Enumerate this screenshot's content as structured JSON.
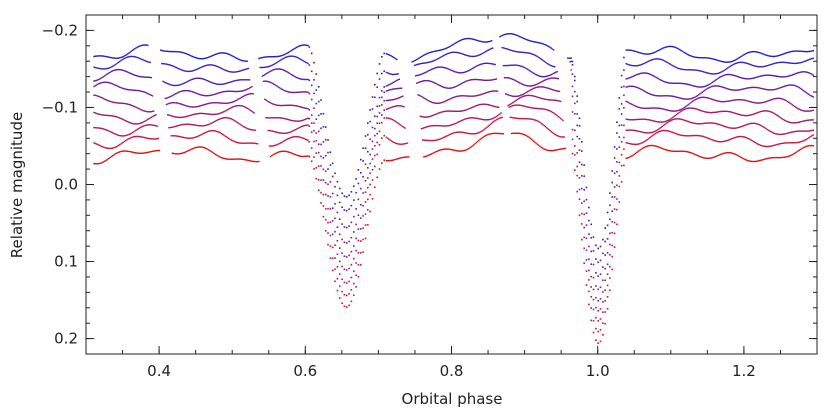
{
  "chart_data": {
    "type": "scatter",
    "title": "",
    "xlabel": "Orbital phase",
    "ylabel": "Relative magnitude",
    "xlim": [
      0.3,
      1.3
    ],
    "ylim": [
      0.22,
      -0.22
    ],
    "y_axis_inverted": true,
    "x_ticks": [
      0.4,
      0.6,
      0.8,
      1.0,
      1.2
    ],
    "x_tick_labels": [
      "0.4",
      "0.6",
      "0.8",
      "1.0",
      "1.2"
    ],
    "y_ticks": [
      -0.2,
      -0.1,
      0.0,
      0.1,
      0.2
    ],
    "y_tick_labels": [
      "−0.2",
      "−0.1",
      "0.0",
      "0.1",
      "0.2"
    ],
    "grid": false,
    "legend": "none",
    "color_gradient": {
      "top": "#1a1ad8",
      "bottom": "#e01010"
    },
    "eclipses": [
      {
        "name": "primary",
        "center": 0.655,
        "half_width": 0.052
      },
      {
        "name": "secondary",
        "center": 1.0,
        "half_width": 0.037
      }
    ],
    "series": [
      {
        "baseline": -0.17,
        "primary_min": 0.015,
        "secondary_min": 0.082,
        "color": "#1f1fd0"
      },
      {
        "baseline": -0.155,
        "primary_min": 0.033,
        "secondary_min": 0.1,
        "color": "#3a1fc2"
      },
      {
        "baseline": -0.138,
        "primary_min": 0.055,
        "secondary_min": 0.118,
        "color": "#561ab0"
      },
      {
        "baseline": -0.122,
        "primary_min": 0.075,
        "secondary_min": 0.135,
        "color": "#6e1a9c"
      },
      {
        "baseline": -0.106,
        "primary_min": 0.093,
        "secondary_min": 0.15,
        "color": "#861a86"
      },
      {
        "baseline": -0.091,
        "primary_min": 0.11,
        "secondary_min": 0.163,
        "color": "#9e1870"
      },
      {
        "baseline": -0.076,
        "primary_min": 0.127,
        "secondary_min": 0.176,
        "color": "#b8165a"
      },
      {
        "baseline": -0.06,
        "primary_min": 0.143,
        "secondary_min": 0.19,
        "color": "#cc1440"
      },
      {
        "baseline": -0.04,
        "primary_min": 0.158,
        "secondary_min": 0.205,
        "color": "#e01010"
      }
    ]
  }
}
